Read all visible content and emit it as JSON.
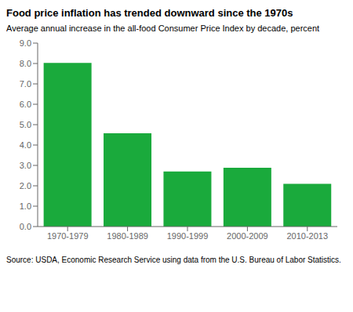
{
  "chart_data": {
    "type": "bar",
    "title": "Food price inflation has trended downward since the 1970s",
    "subtitle": "Average annual increase in the all-food Consumer Price Index by decade, percent",
    "source": "Source: USDA, Economic Research Service using data from the U.S. Bureau of Labor Statistics.",
    "categories": [
      "1970-1979",
      "1980-1989",
      "1990-1999",
      "2000-2009",
      "2010-2013"
    ],
    "values": [
      8.03,
      4.58,
      2.7,
      2.88,
      2.1
    ],
    "color": "#1aaa3c",
    "ylim": [
      0,
      9.0
    ],
    "yticks": [
      {
        "value": 0,
        "label": "0.0"
      },
      {
        "value": 1.0,
        "label": "1.0"
      },
      {
        "value": 2.0,
        "label": "2.0"
      },
      {
        "value": 3.0,
        "label": "3.0"
      },
      {
        "value": 4.0,
        "label": "4.0"
      },
      {
        "value": 5.0,
        "label": "5.0"
      },
      {
        "value": 6.0,
        "label": "6.0"
      },
      {
        "value": 7.0,
        "label": "7.0"
      },
      {
        "value": 8.0,
        "label": "8.0"
      },
      {
        "value": 9.0,
        "label": "9.0"
      }
    ],
    "grid": false
  }
}
